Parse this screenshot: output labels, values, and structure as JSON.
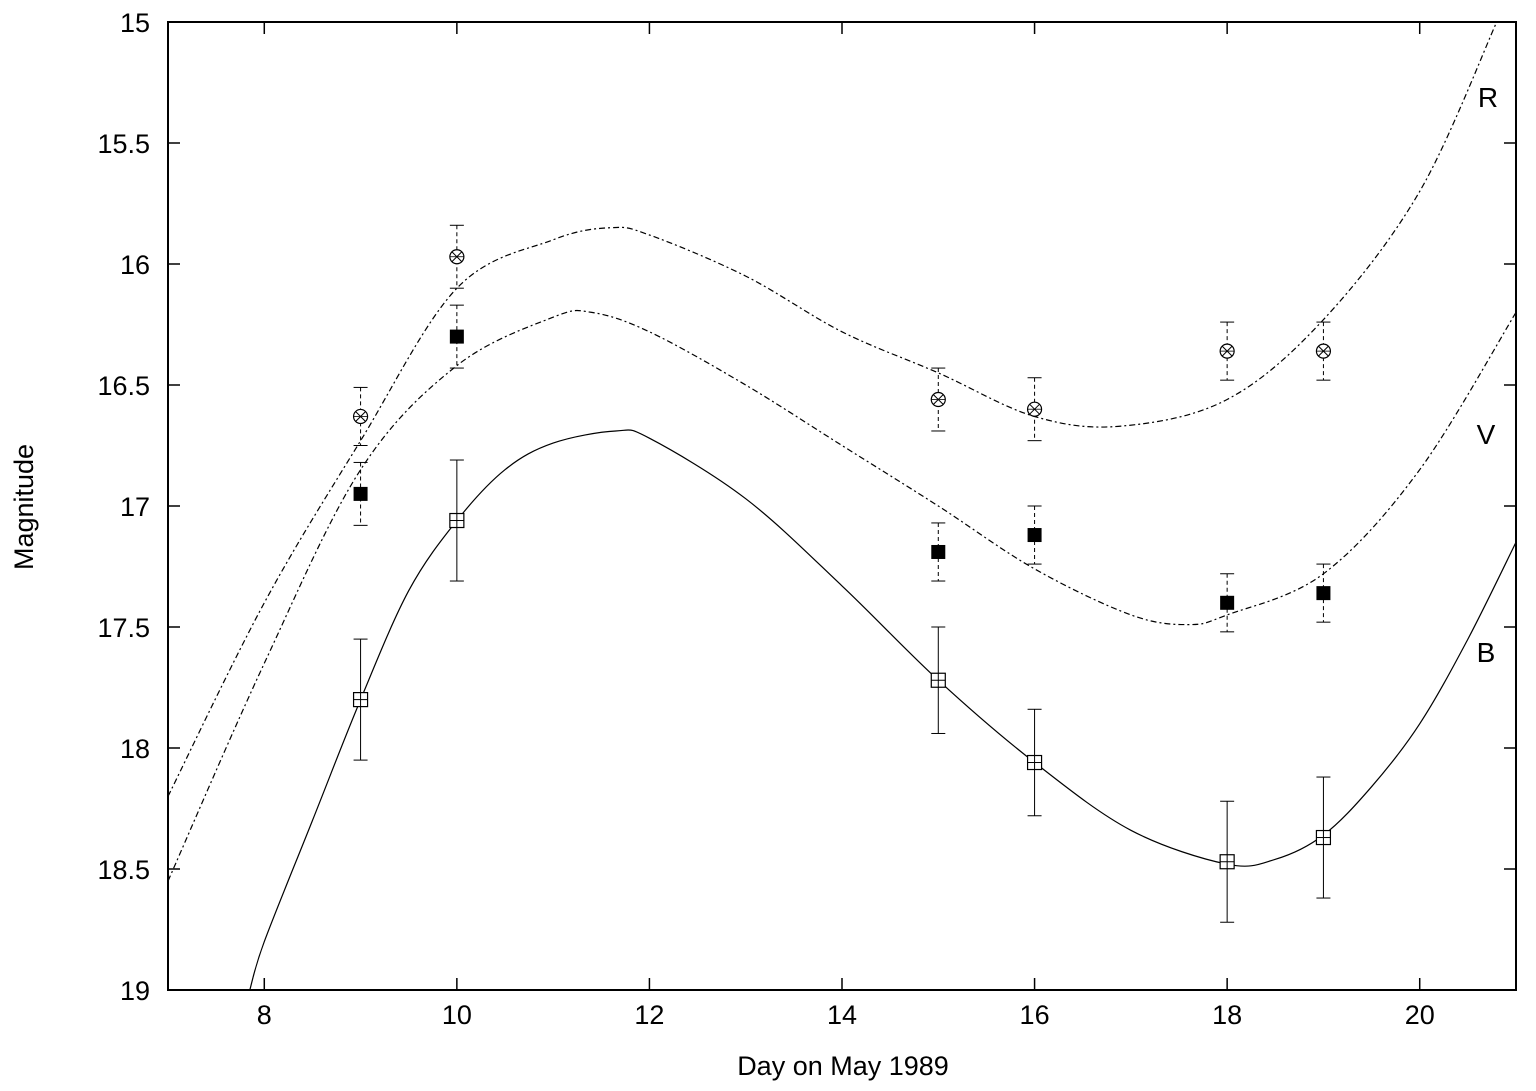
{
  "chart_data": {
    "type": "scatter",
    "title": "",
    "xlabel": "Day on May 1989",
    "ylabel": "Magnitude",
    "xlim": [
      7,
      21
    ],
    "ylim": [
      15,
      19
    ],
    "y_inverted": true,
    "xticks": [
      8,
      10,
      12,
      14,
      16,
      18,
      20
    ],
    "yticks": [
      15,
      15.5,
      16,
      16.5,
      17,
      17.5,
      18,
      18.5,
      19
    ],
    "grid": false,
    "series": [
      {
        "name": "R",
        "marker": "circle-x",
        "curve_style": "dash-dot",
        "x": [
          9,
          10,
          15,
          16,
          18,
          19
        ],
        "values": [
          16.63,
          15.97,
          16.56,
          16.6,
          16.36,
          16.36
        ],
        "errors": [
          0.12,
          0.13,
          0.13,
          0.13,
          0.12,
          0.12
        ],
        "fit_curve": {
          "x": [
            7,
            8,
            9,
            10,
            11,
            11.6,
            12,
            13,
            14,
            15,
            16,
            16.9,
            18,
            19,
            20,
            20.8
          ],
          "y": [
            18.2,
            17.4,
            16.73,
            16.1,
            15.9,
            15.85,
            15.88,
            16.05,
            16.28,
            16.45,
            16.63,
            16.67,
            16.56,
            16.23,
            15.7,
            15.0
          ]
        }
      },
      {
        "name": "V",
        "marker": "filled-square",
        "curve_style": "dash-dot",
        "x": [
          9,
          10,
          15,
          16,
          18,
          19
        ],
        "values": [
          16.95,
          16.3,
          17.19,
          17.12,
          17.4,
          17.36
        ],
        "errors": [
          0.13,
          0.13,
          0.12,
          0.12,
          0.12,
          0.12
        ],
        "fit_curve": {
          "x": [
            7,
            8,
            9,
            10,
            11,
            11.4,
            12,
            13,
            14,
            15,
            16,
            17,
            17.6,
            18,
            19,
            20,
            21
          ],
          "y": [
            18.55,
            17.65,
            16.85,
            16.42,
            16.22,
            16.2,
            16.28,
            16.5,
            16.75,
            17.0,
            17.26,
            17.45,
            17.49,
            17.45,
            17.28,
            16.85,
            16.2
          ]
        }
      },
      {
        "name": "B",
        "marker": "open-square",
        "curve_style": "solid",
        "x": [
          9,
          10,
          15,
          16,
          18,
          19
        ],
        "values": [
          17.8,
          17.06,
          17.72,
          18.06,
          18.47,
          18.37
        ],
        "errors": [
          0.25,
          0.25,
          0.22,
          0.22,
          0.25,
          0.25
        ],
        "fit_curve": {
          "x": [
            7.85,
            8,
            8.5,
            9,
            9.5,
            10,
            10.5,
            11,
            11.65,
            12,
            13,
            14,
            15,
            16,
            17,
            18,
            18.5,
            19,
            19.5,
            20,
            20.5,
            21
          ],
          "y": [
            19.0,
            18.8,
            18.3,
            17.8,
            17.35,
            17.06,
            16.85,
            16.74,
            16.69,
            16.72,
            16.97,
            17.33,
            17.72,
            18.06,
            18.34,
            18.48,
            18.46,
            18.36,
            18.16,
            17.9,
            17.55,
            17.15
          ]
        }
      }
    ]
  }
}
